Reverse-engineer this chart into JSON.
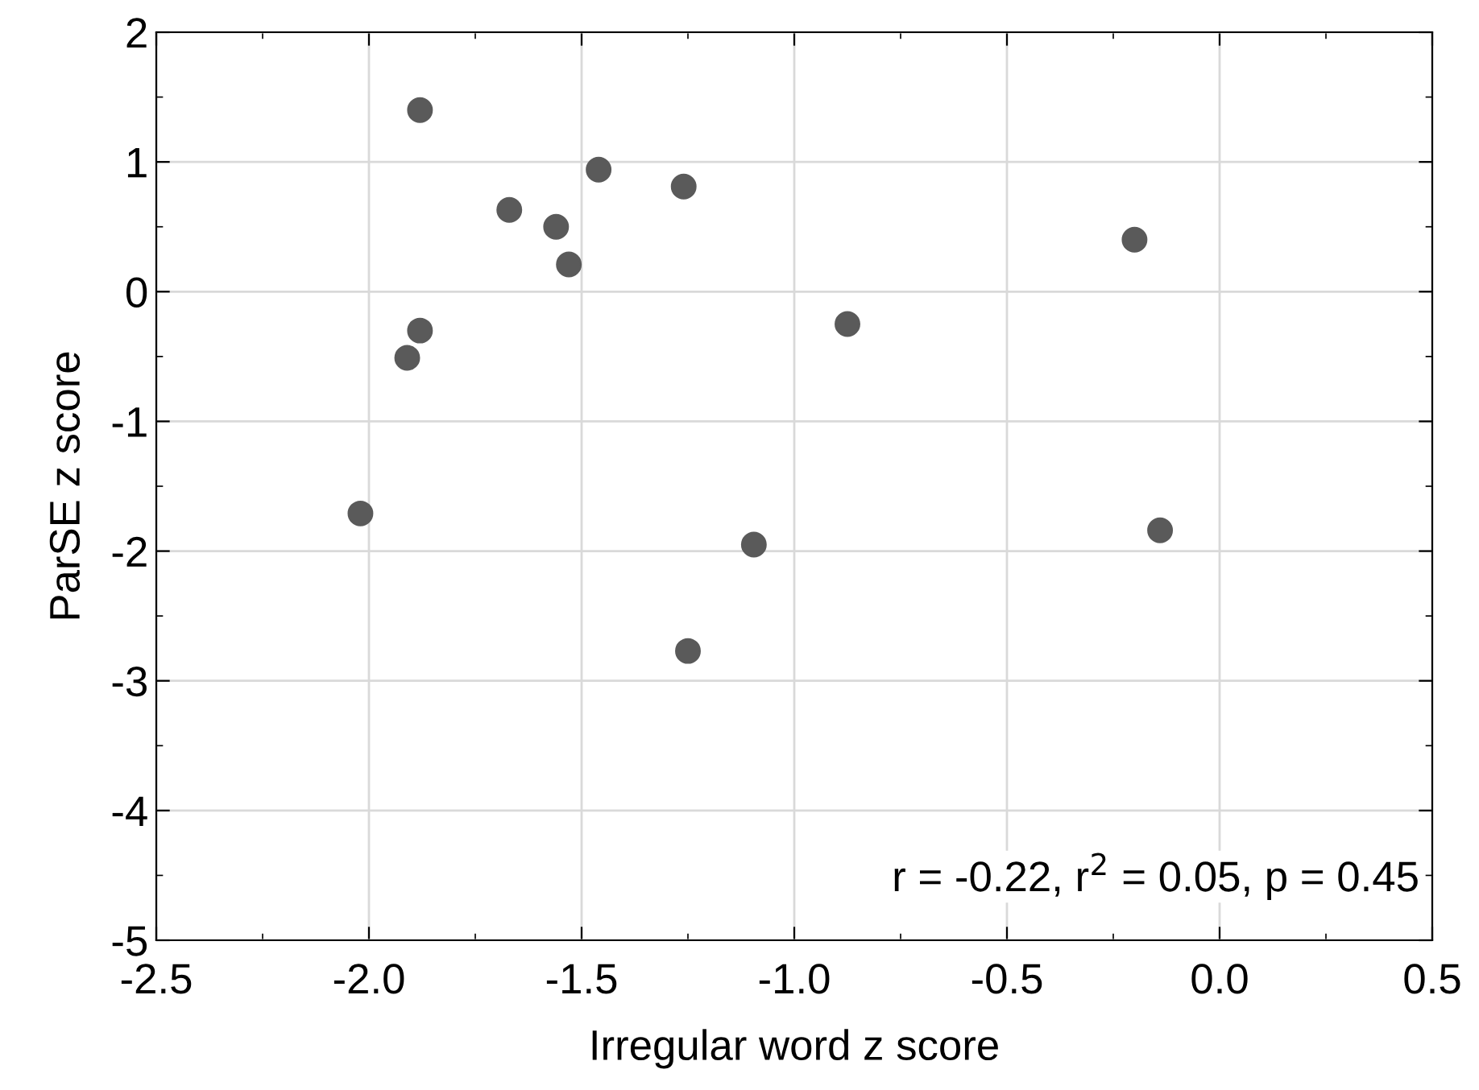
{
  "chart_data": {
    "type": "scatter",
    "xlabel": "Irregular word z score",
    "ylabel": "ParSE z score",
    "x": [
      -1.88,
      -1.46,
      -1.67,
      -1.56,
      -1.53,
      -1.26,
      -1.88,
      -1.91,
      -2.02,
      -0.875,
      -1.095,
      -1.25,
      -0.2,
      -0.14
    ],
    "values": [
      1.4,
      0.94,
      0.63,
      0.5,
      0.21,
      0.81,
      -0.3,
      -0.51,
      -1.71,
      -0.25,
      -1.95,
      -2.77,
      0.4,
      -1.84
    ],
    "color": "#5a5a5a",
    "marker": "circle",
    "grid": true,
    "xlim": [
      -2.5,
      0.5
    ],
    "xticks": [
      -2.5,
      {
        "value": -2,
        "label": "-2.0"
      },
      -1.5,
      {
        "value": -1,
        "label": "-1.0"
      },
      -0.5,
      {
        "value": 0,
        "label": "0.0"
      },
      0.5
    ],
    "ylim": [
      -5,
      2
    ],
    "yticks": [
      -5,
      -4,
      -3,
      -2,
      -1,
      0,
      1,
      2
    ],
    "annotations": [
      "r = -0.22, r$^{2}$ = 0.05, p = 0.45"
    ]
  }
}
